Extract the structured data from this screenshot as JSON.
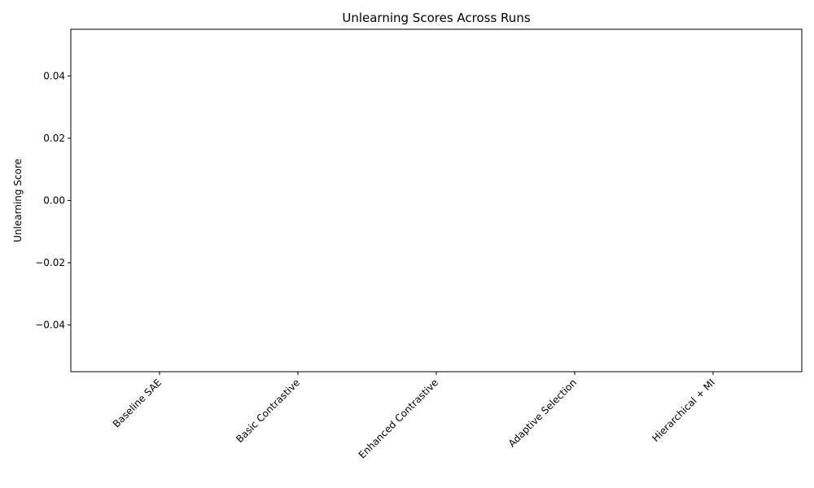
{
  "chart_data": {
    "type": "bar",
    "title": "Unlearning Scores Across Runs",
    "xlabel": "",
    "ylabel": "Unlearning Score",
    "categories": [
      "Baseline SAE",
      "Basic Contrastive",
      "Enhanced Contrastive",
      "Adaptive Selection",
      "Hierarchical + MI"
    ],
    "values": [
      0,
      0,
      0,
      0,
      0
    ],
    "ylim": [
      -0.055,
      0.055
    ],
    "yticks": [
      -0.04,
      -0.02,
      0.0,
      0.02,
      0.04
    ],
    "ytick_labels": [
      "−0.04",
      "−0.02",
      "0.00",
      "0.02",
      "0.04"
    ],
    "grid": false,
    "bar_color": "#1f77b4"
  }
}
